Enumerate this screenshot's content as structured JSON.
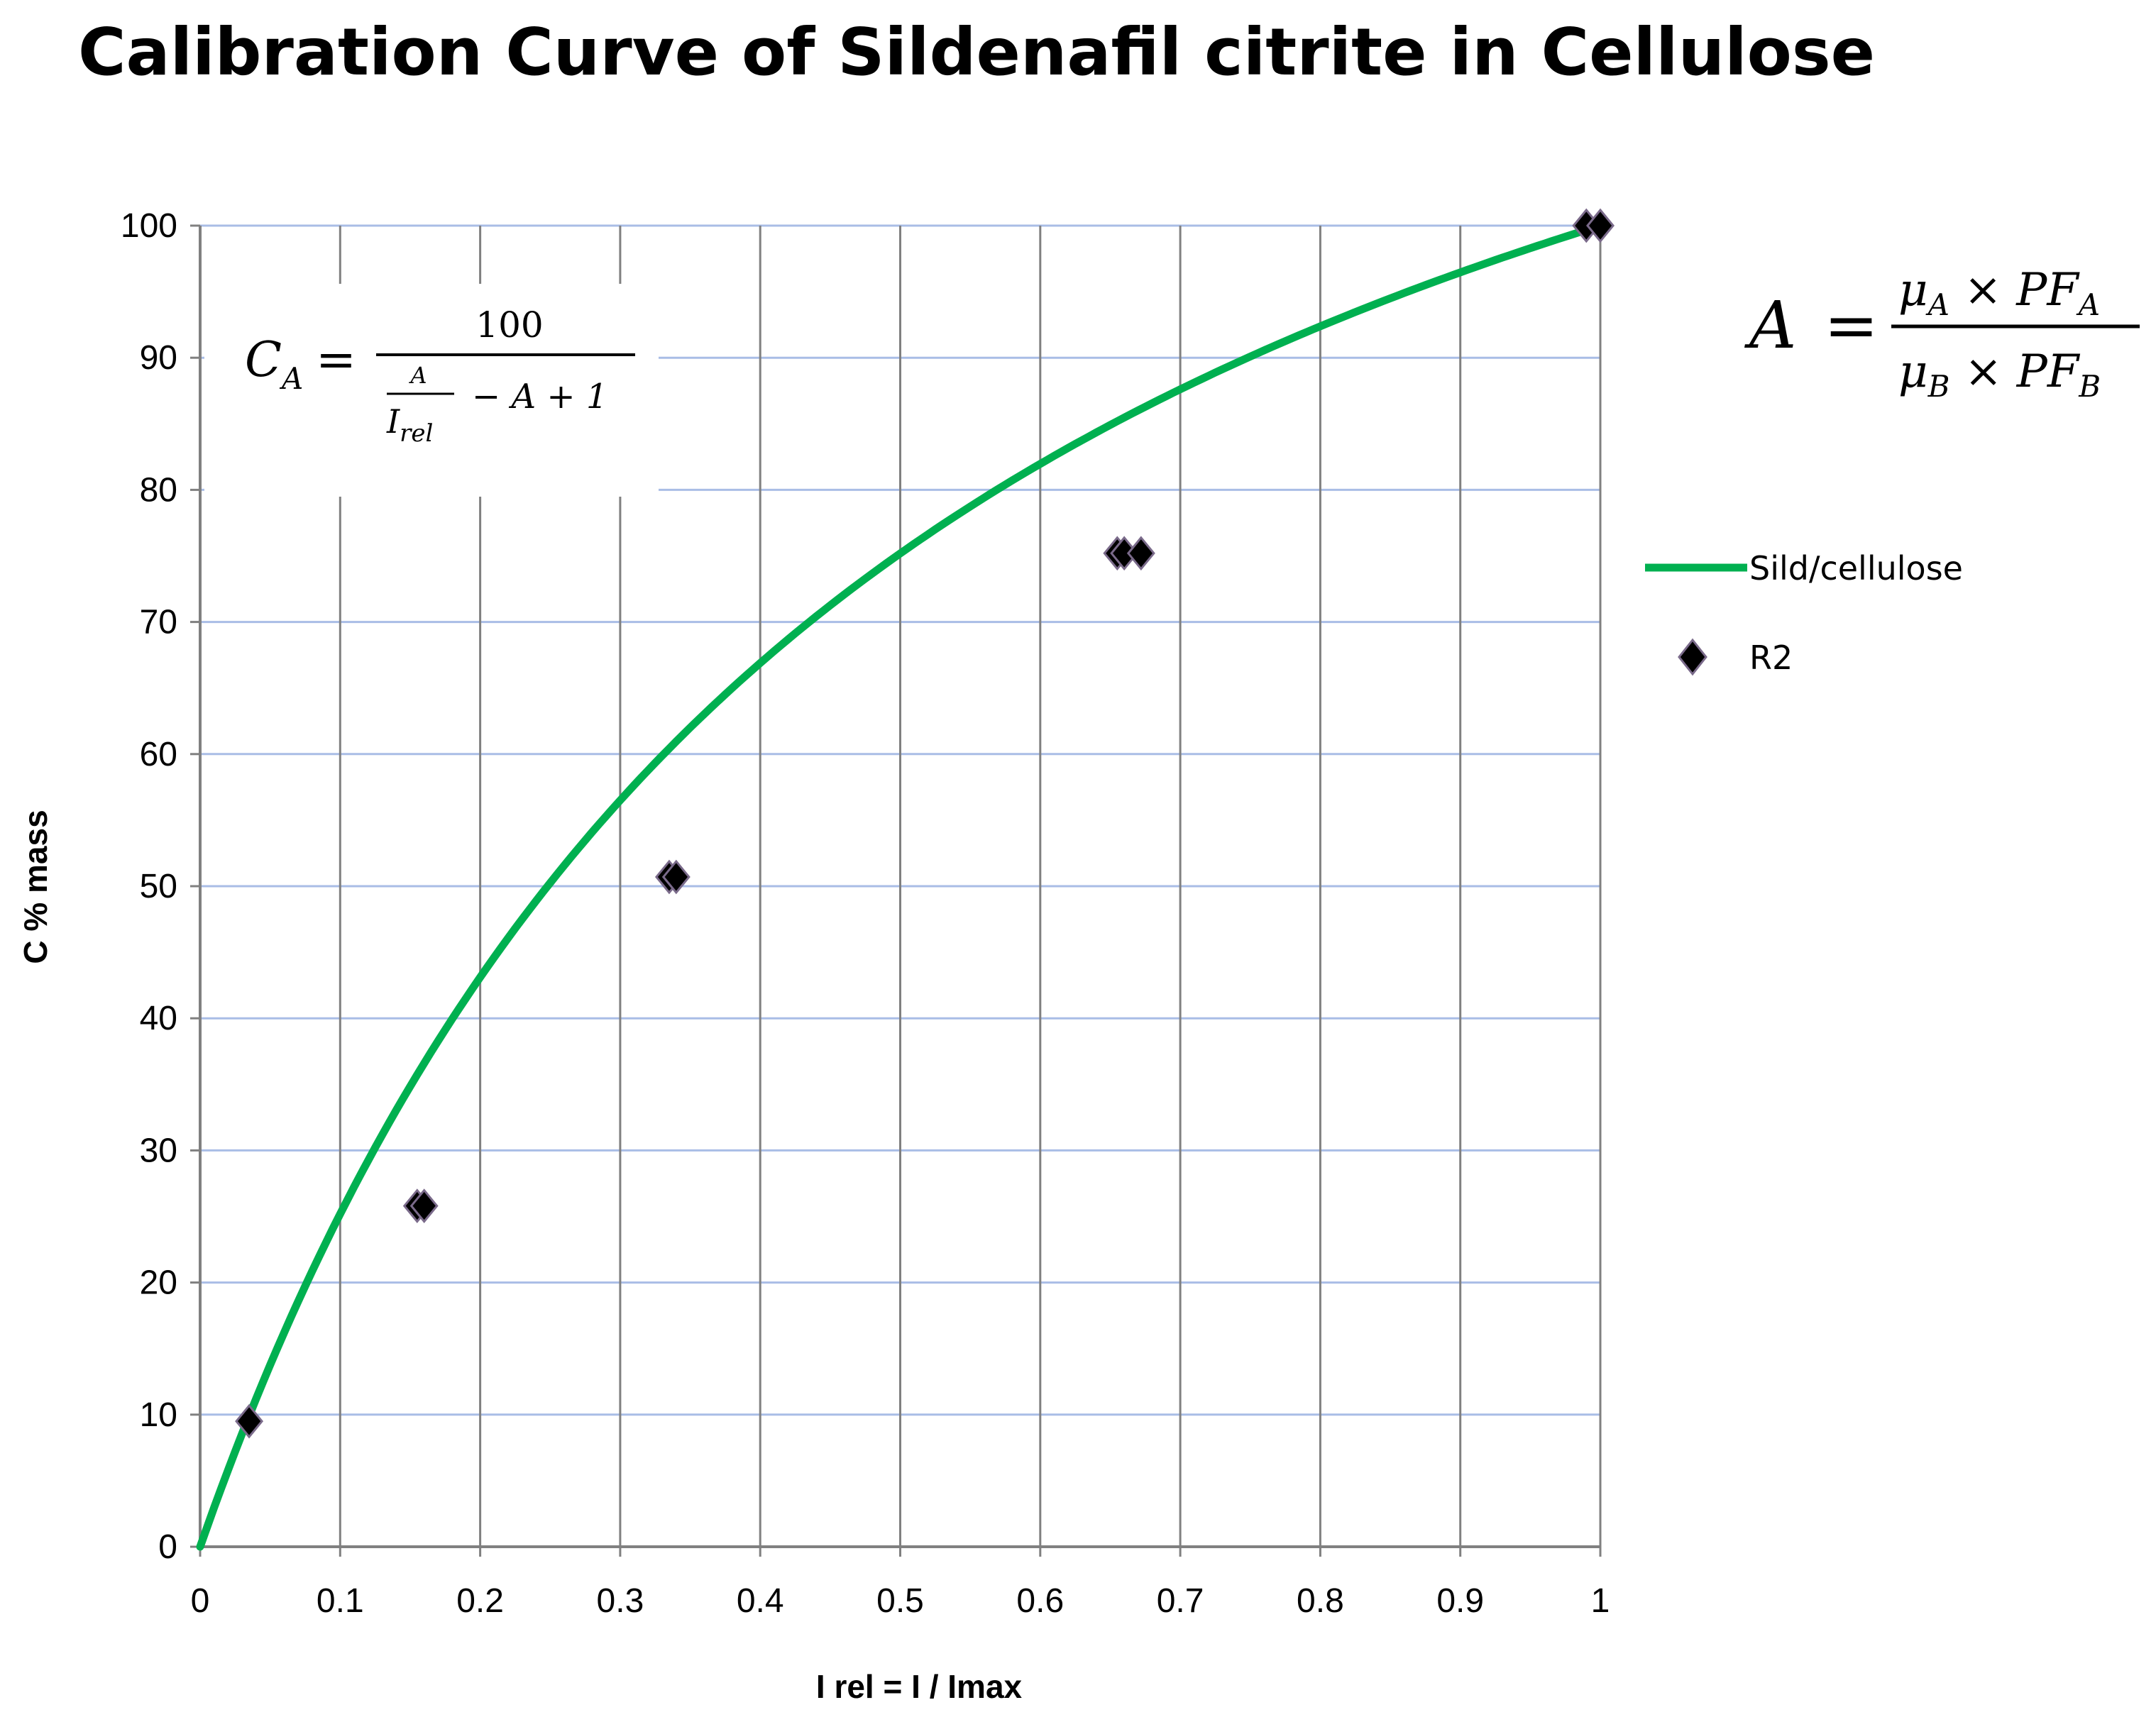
{
  "chart_data": {
    "type": "scatter",
    "title": "Calibration Curve of Sildenafil citrite in Cellulose",
    "xlabel": "I rel = I / Imax",
    "ylabel": "C % mass",
    "xlim": [
      0,
      1
    ],
    "ylim": [
      0,
      100
    ],
    "xticks": [
      "0",
      "0.1",
      "0.2",
      "0.3",
      "0.4",
      "0.5",
      "0.6",
      "0.7",
      "0.8",
      "0.9",
      "1"
    ],
    "yticks": [
      "0",
      "10",
      "20",
      "30",
      "40",
      "50",
      "60",
      "70",
      "80",
      "90",
      "100"
    ],
    "grid": true,
    "legend_position": "right",
    "series": [
      {
        "name": "Sild/cellulose",
        "kind": "line",
        "color": "#00b050",
        "model": "C = 100 / (A / Irel - A + 1)",
        "A": 0.33
      },
      {
        "name": "R2",
        "kind": "scatter",
        "marker": "diamond",
        "color": "#000000",
        "points": [
          {
            "x": 0.035,
            "y": 9.5
          },
          {
            "x": 0.155,
            "y": 25.8
          },
          {
            "x": 0.16,
            "y": 25.8
          },
          {
            "x": 0.335,
            "y": 50.7
          },
          {
            "x": 0.34,
            "y": 50.7
          },
          {
            "x": 0.655,
            "y": 75.2
          },
          {
            "x": 0.66,
            "y": 75.2
          },
          {
            "x": 0.672,
            "y": 75.2
          },
          {
            "x": 0.99,
            "y": 100
          },
          {
            "x": 1.0,
            "y": 100
          }
        ]
      }
    ],
    "annotations": {
      "formula_left": {
        "lhs": "C",
        "lhs_sub": "A",
        "equals": "=",
        "numerator": "100",
        "inner_num": "A",
        "inner_den": "I",
        "inner_den_sub": "rel",
        "tail": "− A + 1"
      },
      "formula_right": {
        "lhs": "A",
        "equals": "=",
        "num_mu": "μ",
        "num_mu_sub": "A",
        "num_times": " × PF",
        "num_pf_sub": "A",
        "den_mu": "μ",
        "den_mu_sub": "B",
        "den_times": " × PF",
        "den_pf_sub": "B"
      }
    }
  }
}
